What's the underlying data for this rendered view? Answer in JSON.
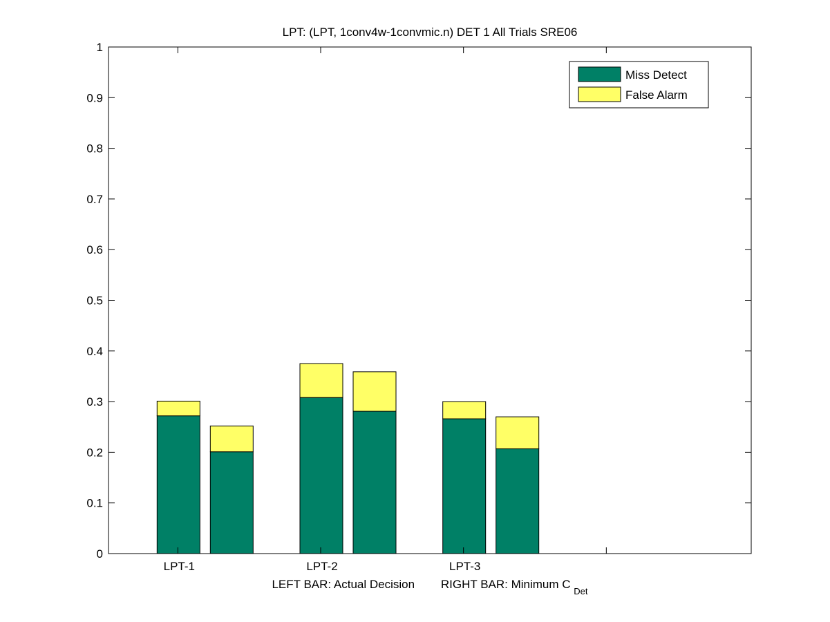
{
  "chart_data": {
    "type": "bar",
    "stacked": true,
    "title": "LPT: (LPT, 1conv4w-1convmic.n) DET 1 All Trials SRE06",
    "xlabel": {
      "left_text": "LEFT BAR: Actual Decision",
      "right_text": "RIGHT BAR: Minimum C",
      "right_subscript": "Det"
    },
    "ylabel": "",
    "ylim": [
      0,
      1
    ],
    "yticks": [
      "0",
      "0.1",
      "0.2",
      "0.3",
      "0.4",
      "0.5",
      "0.6",
      "0.7",
      "0.8",
      "0.9",
      "1"
    ],
    "x_positions": [
      "LPT-1",
      "LPT-2",
      "LPT-3",
      ""
    ],
    "bars_per_group": [
      "Actual Decision",
      "Minimum CDet"
    ],
    "categories": [
      "LPT-1",
      "LPT-2",
      "LPT-3"
    ],
    "series": [
      {
        "name": "Miss Detect",
        "color": "#008066",
        "values": [
          [
            0.272,
            0.201
          ],
          [
            0.308,
            0.281
          ],
          [
            0.266,
            0.207
          ]
        ]
      },
      {
        "name": "False Alarm",
        "color": "#ffff66",
        "values": [
          [
            0.029,
            0.051
          ],
          [
            0.067,
            0.078
          ],
          [
            0.034,
            0.063
          ]
        ]
      }
    ],
    "grid": false,
    "legend": {
      "position": "top-right",
      "entries": [
        "Miss Detect",
        "False Alarm"
      ]
    },
    "colors": {
      "axes": "#000000",
      "background": "#ffffff",
      "bar_edge": "#000000"
    }
  }
}
